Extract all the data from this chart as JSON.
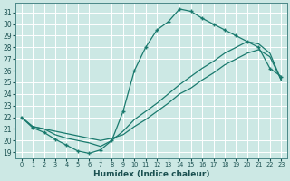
{
  "bg_color": "#cce8e4",
  "grid_color": "#aacccc",
  "line_color": "#1a7a6e",
  "xlabel": "Humidex (Indice chaleur)",
  "xlim": [
    -0.5,
    23.5
  ],
  "ylim": [
    18.5,
    31.8
  ],
  "xticks": [
    0,
    1,
    2,
    3,
    4,
    5,
    6,
    7,
    8,
    9,
    10,
    11,
    12,
    13,
    14,
    15,
    16,
    17,
    18,
    19,
    20,
    21,
    22,
    23
  ],
  "yticks": [
    19,
    20,
    21,
    22,
    23,
    24,
    25,
    26,
    27,
    28,
    29,
    30,
    31
  ],
  "curve1_x": [
    0,
    1,
    2,
    3,
    4,
    5,
    6,
    7,
    8,
    9,
    10,
    11,
    12,
    13,
    14,
    15,
    16,
    17,
    18,
    19,
    20,
    21,
    22,
    23
  ],
  "curve1_y": [
    22.0,
    21.1,
    20.7,
    20.1,
    19.6,
    19.1,
    18.9,
    19.2,
    20.0,
    22.5,
    26.0,
    28.0,
    29.5,
    30.2,
    31.3,
    31.1,
    30.5,
    30.0,
    29.5,
    29.0,
    28.5,
    28.0,
    26.2,
    25.5
  ],
  "curve2_x": [
    0,
    1,
    2,
    3,
    4,
    5,
    6,
    7,
    8,
    9,
    10,
    11,
    12,
    13,
    14,
    15,
    16,
    17,
    18,
    19,
    20,
    21,
    22,
    23
  ],
  "curve2_y": [
    22.0,
    21.2,
    21.0,
    20.5,
    20.2,
    20.0,
    19.8,
    19.5,
    20.0,
    20.8,
    21.8,
    22.5,
    23.2,
    24.0,
    24.8,
    25.5,
    26.2,
    26.8,
    27.5,
    28.0,
    28.5,
    28.3,
    27.5,
    25.2
  ],
  "curve3_x": [
    0,
    1,
    2,
    3,
    4,
    5,
    6,
    7,
    8,
    9,
    10,
    11,
    12,
    13,
    14,
    15,
    16,
    17,
    18,
    19,
    20,
    21,
    22,
    23
  ],
  "curve3_y": [
    22.0,
    21.2,
    21.0,
    20.8,
    20.6,
    20.4,
    20.2,
    20.0,
    20.2,
    20.5,
    21.2,
    21.8,
    22.5,
    23.2,
    24.0,
    24.5,
    25.2,
    25.8,
    26.5,
    27.0,
    27.5,
    27.8,
    27.2,
    25.2
  ]
}
